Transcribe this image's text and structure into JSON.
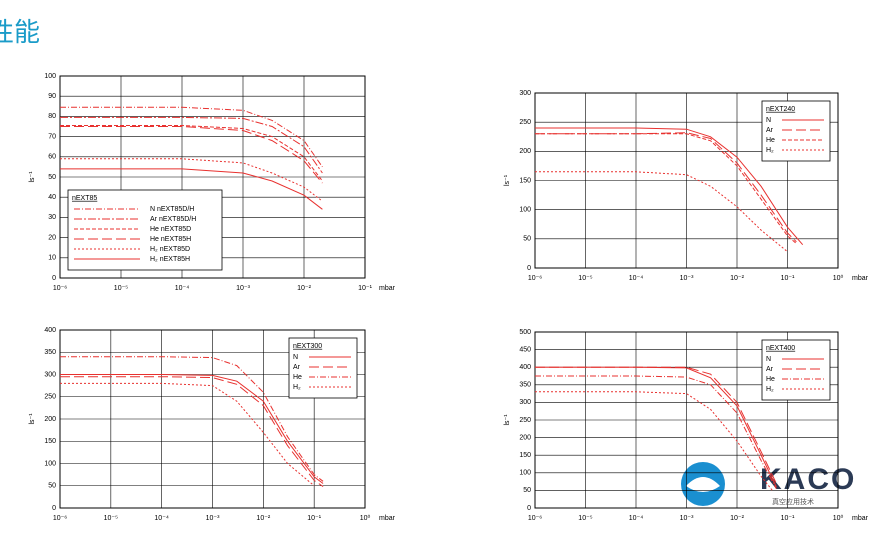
{
  "header": {
    "title": "性能"
  },
  "logo": {
    "name": "KACO",
    "subtitle": "真空应用技术"
  },
  "chart_data": [
    {
      "type": "line",
      "title": "nEXT85",
      "ylabel": "ls⁻¹",
      "xlabel": "mbar",
      "xlog": true,
      "grid": true,
      "xlim": [
        1e-06,
        0.1
      ],
      "xticks": [
        {
          "value": 1e-06,
          "label": "10⁻⁶"
        },
        {
          "value": 1e-05,
          "label": "10⁻⁵"
        },
        {
          "value": 0.0001,
          "label": "10⁻⁴"
        },
        {
          "value": 0.001,
          "label": "10⁻³"
        },
        {
          "value": 0.01,
          "label": "10⁻²"
        },
        {
          "value": 0.1,
          "label": "10⁻¹"
        }
      ],
      "ylim": [
        0,
        100
      ],
      "yticks": [
        0,
        10,
        20,
        30,
        40,
        50,
        60,
        70,
        80,
        90,
        100
      ],
      "legend": "bottom-left",
      "series": [
        {
          "name": "N nEXT85D/H",
          "color": "#e8312f",
          "dash": "6 2 1 2",
          "x": [
            1e-06,
            0.0001,
            0.001,
            0.003,
            0.01,
            0.02
          ],
          "values": [
            84.5,
            84.5,
            83,
            78,
            68,
            55
          ]
        },
        {
          "name": "Ar nEXT85D/H",
          "color": "#e8312f",
          "dash": "8 2 2 2",
          "x": [
            1e-06,
            0.0001,
            0.001,
            0.003,
            0.01,
            0.02
          ],
          "values": [
            79.5,
            79.5,
            79,
            75,
            65,
            52
          ]
        },
        {
          "name": "He nEXT85D",
          "color": "#e8312f",
          "dash": "4 2",
          "x": [
            1e-06,
            0.0001,
            0.001,
            0.003,
            0.01,
            0.02
          ],
          "values": [
            75.5,
            75.5,
            74,
            70,
            60,
            48
          ]
        },
        {
          "name": "He nEXT85H",
          "color": "#e8312f",
          "dash": "10 4",
          "x": [
            1e-06,
            0.0001,
            0.001,
            0.003,
            0.01,
            0.02
          ],
          "values": [
            75,
            75,
            73,
            68,
            58,
            47
          ]
        },
        {
          "name": "H₂ nEXT85D",
          "color": "#e8312f",
          "dash": "2 2",
          "x": [
            1e-06,
            0.0001,
            0.001,
            0.003,
            0.01,
            0.02
          ],
          "values": [
            59,
            59,
            57,
            52,
            45,
            38
          ]
        },
        {
          "name": "H₂ nEXT85H",
          "color": "#e8312f",
          "dash": "",
          "x": [
            1e-06,
            0.0001,
            0.001,
            0.003,
            0.01,
            0.02
          ],
          "values": [
            54,
            54,
            52,
            48,
            41,
            34
          ]
        }
      ]
    },
    {
      "type": "line",
      "title": "nEXT240",
      "ylabel": "ls⁻¹",
      "xlabel": "mbar",
      "xlog": true,
      "grid": true,
      "xlim": [
        1e-06,
        1
      ],
      "xticks": [
        {
          "value": 1e-06,
          "label": "10⁻⁶"
        },
        {
          "value": 1e-05,
          "label": "10⁻⁵"
        },
        {
          "value": 0.0001,
          "label": "10⁻⁴"
        },
        {
          "value": 0.001,
          "label": "10⁻³"
        },
        {
          "value": 0.01,
          "label": "10⁻²"
        },
        {
          "value": 0.1,
          "label": "10⁻¹"
        },
        {
          "value": 1,
          "label": "10⁰"
        }
      ],
      "ylim": [
        0,
        300
      ],
      "yticks": [
        0,
        50,
        100,
        150,
        200,
        250,
        300
      ],
      "legend": "top-right",
      "series": [
        {
          "name": "N",
          "color": "#e8312f",
          "dash": "",
          "x": [
            1e-06,
            0.0001,
            0.001,
            0.003,
            0.01,
            0.03,
            0.1,
            0.2
          ],
          "values": [
            240,
            240,
            238,
            225,
            190,
            140,
            70,
            40
          ]
        },
        {
          "name": "Ar",
          "color": "#e8312f",
          "dash": "10 4",
          "x": [
            1e-06,
            0.0001,
            0.001,
            0.003,
            0.01,
            0.03,
            0.1,
            0.15
          ],
          "values": [
            230,
            230,
            232,
            222,
            180,
            125,
            60,
            45
          ]
        },
        {
          "name": "He",
          "color": "#e8312f",
          "dash": "4 2",
          "x": [
            1e-06,
            0.0001,
            0.001,
            0.003,
            0.01,
            0.03,
            0.1,
            0.15
          ],
          "values": [
            230,
            230,
            230,
            218,
            175,
            118,
            55,
            42
          ]
        },
        {
          "name": "H₂",
          "color": "#e8312f",
          "dash": "2 2",
          "x": [
            1e-06,
            0.0001,
            0.001,
            0.003,
            0.01,
            0.03,
            0.1
          ],
          "values": [
            165,
            165,
            160,
            140,
            105,
            65,
            28
          ]
        }
      ]
    },
    {
      "type": "line",
      "title": "nEXT300",
      "ylabel": "ls⁻¹",
      "xlabel": "mbar",
      "xlog": true,
      "grid": true,
      "xlim": [
        1e-06,
        1
      ],
      "xticks": [
        {
          "value": 1e-06,
          "label": "10⁻⁶"
        },
        {
          "value": 1e-05,
          "label": "10⁻⁵"
        },
        {
          "value": 0.0001,
          "label": "10⁻⁴"
        },
        {
          "value": 0.001,
          "label": "10⁻³"
        },
        {
          "value": 0.01,
          "label": "10⁻²"
        },
        {
          "value": 0.1,
          "label": "10⁻¹"
        },
        {
          "value": 1,
          "label": "10⁰"
        }
      ],
      "ylim": [
        0,
        400
      ],
      "yticks": [
        0,
        50,
        100,
        150,
        200,
        250,
        300,
        350,
        400
      ],
      "legend": "top-right",
      "series": [
        {
          "name": "N",
          "color": "#e8312f",
          "dash": "",
          "x": [
            1e-06,
            0.0001,
            0.001,
            0.003,
            0.01,
            0.03,
            0.1,
            0.15
          ],
          "values": [
            300,
            300,
            298,
            285,
            240,
            150,
            70,
            55
          ]
        },
        {
          "name": "Ar",
          "color": "#e8312f",
          "dash": "10 4",
          "x": [
            1e-06,
            0.0001,
            0.001,
            0.003,
            0.01,
            0.03,
            0.1,
            0.15
          ],
          "values": [
            295,
            295,
            293,
            278,
            230,
            140,
            62,
            48
          ]
        },
        {
          "name": "He",
          "color": "#e8312f",
          "dash": "6 2 1 2",
          "x": [
            1e-06,
            0.0001,
            0.001,
            0.003,
            0.01,
            0.03,
            0.1,
            0.15
          ],
          "values": [
            340,
            340,
            338,
            320,
            260,
            160,
            75,
            60
          ]
        },
        {
          "name": "H₂",
          "color": "#e8312f",
          "dash": "2 2",
          "x": [
            1e-06,
            0.0001,
            0.001,
            0.003,
            0.01,
            0.03,
            0.1
          ],
          "values": [
            280,
            280,
            275,
            240,
            170,
            100,
            50
          ]
        }
      ]
    },
    {
      "type": "line",
      "title": "nEXT400",
      "ylabel": "ls⁻¹",
      "xlabel": "mbar",
      "xlog": true,
      "grid": true,
      "xlim": [
        1e-06,
        1
      ],
      "xticks": [
        {
          "value": 1e-06,
          "label": "10⁻⁶"
        },
        {
          "value": 1e-05,
          "label": "10⁻⁵"
        },
        {
          "value": 0.0001,
          "label": "10⁻⁴"
        },
        {
          "value": 0.001,
          "label": "10⁻³"
        },
        {
          "value": 0.01,
          "label": "10⁻²"
        },
        {
          "value": 0.1,
          "label": "10⁻¹"
        },
        {
          "value": 1,
          "label": "10⁰"
        }
      ],
      "ylim": [
        0,
        500
      ],
      "yticks": [
        0,
        50,
        100,
        150,
        200,
        250,
        300,
        350,
        400,
        450,
        500
      ],
      "legend": "top-right",
      "series": [
        {
          "name": "N",
          "color": "#e8312f",
          "dash": "",
          "x": [
            1e-06,
            0.0001,
            0.001,
            0.003,
            0.01,
            0.03,
            0.06
          ],
          "values": [
            400,
            400,
            398,
            370,
            290,
            150,
            60
          ]
        },
        {
          "name": "Ar",
          "color": "#e8312f",
          "dash": "10 4",
          "x": [
            1e-06,
            0.0001,
            0.001,
            0.003,
            0.01,
            0.03,
            0.06
          ],
          "values": [
            400,
            400,
            400,
            380,
            300,
            160,
            70
          ]
        },
        {
          "name": "He",
          "color": "#e8312f",
          "dash": "6 2 1 2",
          "x": [
            1e-06,
            0.0001,
            0.001,
            0.003,
            0.01,
            0.03,
            0.06
          ],
          "values": [
            375,
            375,
            372,
            350,
            270,
            135,
            55
          ]
        },
        {
          "name": "H₂",
          "color": "#e8312f",
          "dash": "2 2",
          "x": [
            1e-06,
            0.0001,
            0.001,
            0.003,
            0.01,
            0.03,
            0.05
          ],
          "values": [
            330,
            330,
            325,
            280,
            190,
            90,
            50
          ]
        }
      ]
    }
  ]
}
